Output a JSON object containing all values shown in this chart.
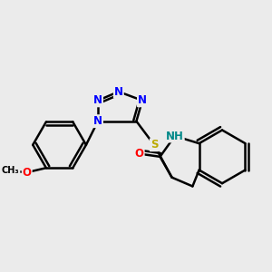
{
  "background_color": "#ebebeb",
  "bond_color": "#000000",
  "bond_width": 1.8,
  "atom_colors": {
    "N": "#0000ff",
    "O": "#ff0000",
    "S": "#bbaa00",
    "NH": "#008888",
    "C": "#000000"
  },
  "font_size": 8.5,
  "fig_width": 3.0,
  "fig_height": 3.0,
  "dpi": 100
}
